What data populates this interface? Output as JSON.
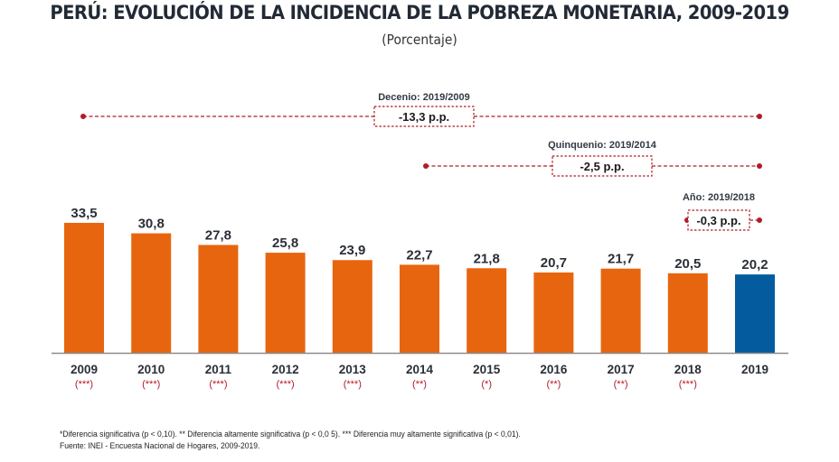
{
  "header": {
    "title": "PERÚ: EVOLUCIÓN DE LA INCIDENCIA DE LA POBREZA MONETARIA, 2009-2019",
    "subtitle": "(Porcentaje)"
  },
  "colors": {
    "bar": "#e8650f",
    "highlight": "#045b9e",
    "annotation": "#b11c24",
    "text": "#2a2f38",
    "axis": "#8c8c8c"
  },
  "chart_data": {
    "type": "bar",
    "title": "PERÚ: EVOLUCIÓN DE LA INCIDENCIA DE LA POBREZA MONETARIA, 2009-2019",
    "subtitle": "(Porcentaje)",
    "xlabel": "",
    "ylabel": "Porcentaje",
    "ylim": [
      0,
      36
    ],
    "grid": false,
    "legend": "none",
    "categories": [
      "2009",
      "2010",
      "2011",
      "2012",
      "2013",
      "2014",
      "2015",
      "2016",
      "2017",
      "2018",
      "2019"
    ],
    "values": [
      33.5,
      30.8,
      27.8,
      25.8,
      23.9,
      22.7,
      21.8,
      20.7,
      21.7,
      20.5,
      20.2
    ],
    "value_labels": [
      "33,5",
      "30,8",
      "27,8",
      "25,8",
      "23,9",
      "22,7",
      "21,8",
      "20,7",
      "21,7",
      "20,5",
      "20,2"
    ],
    "significance": [
      "(***)",
      "(***)",
      "(***)",
      "(***)",
      "(***)",
      "(**)",
      "(*)",
      "(**)",
      "(**)",
      "(***)",
      ""
    ],
    "highlight_category": "2019",
    "annotations": [
      {
        "label": "Decenio: 2019/2009",
        "value": "-13,3 p.p.",
        "from": "2009",
        "to": "2019"
      },
      {
        "label": "Quinquenio: 2019/2014",
        "value": "-2,5 p.p.",
        "from": "2014",
        "to": "2019"
      },
      {
        "label": "Año: 2019/2018",
        "value": "-0,3 p.p.",
        "from": "2018",
        "to": "2019"
      }
    ]
  },
  "footer": {
    "note": "*Diferencia  significativa  (p <  0,10).  ** Diferencia  altamente  significativa  (p < 0,0 5). *** Diferencia  muy  altamente  significativa  (p < 0,01).",
    "source": "Fuente:  INEI - Encuesta  Nacional  de  Hogares,  2009-2019."
  }
}
